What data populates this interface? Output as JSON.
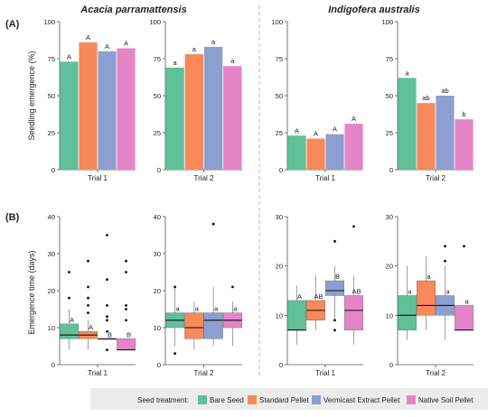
{
  "colors": {
    "bare_seed": "#5fc09a",
    "standard_pellet": "#f7895a",
    "vermicast_pellet": "#8c9fd0",
    "native_soil_pellet": "#e585c8",
    "axis": "#555555",
    "grid_bg": "#ffffff",
    "legend_bg": "#ececec"
  },
  "figure": {
    "species": [
      "Acacia parramattensis",
      "Indigofera australis"
    ],
    "panel_a_label": "(A)",
    "panel_b_label": "(B)",
    "panel_a_ylabel": "Seedling emergence (%)",
    "panel_b_ylabel": "Emergence time (days)",
    "legend_title": "Seed treatment:",
    "legend_items": [
      "Bare Seed",
      "Standard Pellet",
      "Vermicast Extract Pellet",
      "Native Soil Pellet"
    ]
  },
  "chart_data": [
    {
      "type": "bar",
      "panel": "A",
      "species": "Acacia parramattensis",
      "xlabel": "Trial 1",
      "ylim": [
        0,
        100
      ],
      "yticks": [
        0,
        25,
        50,
        75,
        100
      ],
      "categories": [
        "Bare Seed",
        "Standard Pellet",
        "Vermicast Extract Pellet",
        "Native Soil Pellet"
      ],
      "values": [
        73,
        86,
        80,
        82
      ],
      "letters": [
        "A",
        "A",
        "A",
        "A"
      ]
    },
    {
      "type": "bar",
      "panel": "A",
      "species": "Acacia parramattensis",
      "xlabel": "Trial 2",
      "ylim": [
        0,
        100
      ],
      "yticks": [
        0,
        25,
        50,
        75,
        100
      ],
      "categories": [
        "Bare Seed",
        "Standard Pellet",
        "Vermicast Extract Pellet",
        "Native Soil Pellet"
      ],
      "values": [
        69,
        78,
        83,
        70
      ],
      "letters": [
        "a",
        "a",
        "a",
        "a"
      ]
    },
    {
      "type": "bar",
      "panel": "A",
      "species": "Indigofera australis",
      "xlabel": "Trial 1",
      "ylim": [
        0,
        100
      ],
      "yticks": [
        0,
        25,
        50,
        75,
        100
      ],
      "categories": [
        "Bare Seed",
        "Standard Pellet",
        "Vermicast Extract Pellet",
        "Native Soil Pellet"
      ],
      "values": [
        23,
        21,
        24,
        31
      ],
      "letters": [
        "A",
        "A",
        "A",
        "A"
      ]
    },
    {
      "type": "bar",
      "panel": "A",
      "species": "Indigofera australis",
      "xlabel": "Trial 2",
      "ylim": [
        0,
        100
      ],
      "yticks": [
        0,
        25,
        50,
        75,
        100
      ],
      "categories": [
        "Bare Seed",
        "Standard Pellet",
        "Vermicast Extract Pellet",
        "Native Soil Pellet"
      ],
      "values": [
        62,
        45,
        50,
        34
      ],
      "letters": [
        "a",
        "ab",
        "ab",
        "b"
      ]
    },
    {
      "type": "box",
      "panel": "B",
      "species": "Acacia parramattensis",
      "xlabel": "Trial 1",
      "ylim": [
        0,
        40
      ],
      "yticks": [
        0,
        10,
        20,
        30,
        40
      ],
      "categories": [
        "Bare Seed",
        "Standard Pellet",
        "Vermicast Extract Pellet",
        "Native Soil Pellet"
      ],
      "boxes": [
        {
          "whislo": 4,
          "q1": 7,
          "med": 8,
          "q3": 11,
          "whishi": 15,
          "fliers": [
            18,
            25
          ]
        },
        {
          "whislo": 4,
          "q1": 7,
          "med": 8,
          "q3": 9,
          "whishi": 12,
          "fliers": [
            14,
            16,
            18,
            21,
            28
          ]
        },
        {
          "whislo": 7,
          "q1": 7,
          "med": 7,
          "q3": 7,
          "whishi": 7,
          "fliers": [
            4,
            9,
            12,
            13,
            16,
            23,
            35
          ]
        },
        {
          "whislo": 4,
          "q1": 4,
          "med": 4,
          "q3": 7,
          "whishi": 7,
          "fliers": [
            12,
            15,
            16,
            25,
            28
          ]
        }
      ],
      "letters": [
        "A",
        "A",
        "B",
        "B"
      ]
    },
    {
      "type": "box",
      "panel": "B",
      "species": "Acacia parramattensis",
      "xlabel": "Trial 2",
      "ylim": [
        0,
        40
      ],
      "yticks": [
        0,
        10,
        20,
        30,
        40
      ],
      "categories": [
        "Bare Seed",
        "Standard Pellet",
        "Vermicast Extract Pellet",
        "Native Soil Pellet"
      ],
      "boxes": [
        {
          "whislo": 5,
          "q1": 10,
          "med": 12,
          "q3": 14,
          "whishi": 21,
          "fliers": [
            3,
            21
          ]
        },
        {
          "whislo": 4,
          "q1": 7,
          "med": 10,
          "q3": 14,
          "whishi": 17,
          "fliers": []
        },
        {
          "whislo": 5,
          "q1": 7,
          "med": 12,
          "q3": 14,
          "whishi": 21,
          "fliers": [
            38
          ]
        },
        {
          "whislo": 5,
          "q1": 10,
          "med": 12,
          "q3": 14,
          "whishi": 17,
          "fliers": [
            21
          ]
        }
      ],
      "letters": [
        "a",
        "a",
        "a",
        "a"
      ]
    },
    {
      "type": "box",
      "panel": "B",
      "species": "Indigofera australis",
      "xlabel": "Trial 1",
      "ylim": [
        0,
        30
      ],
      "yticks": [
        0,
        10,
        20,
        30
      ],
      "categories": [
        "Bare Seed",
        "Standard Pellet",
        "Vermicast Extract Pellet",
        "Native Soil Pellet"
      ],
      "boxes": [
        {
          "whislo": 4,
          "q1": 7,
          "med": 7,
          "q3": 13,
          "whishi": 16,
          "fliers": []
        },
        {
          "whislo": 7,
          "q1": 9,
          "med": 11,
          "q3": 13,
          "whishi": 18,
          "fliers": []
        },
        {
          "whislo": 9,
          "q1": 14,
          "med": 15,
          "q3": 17,
          "whishi": 20,
          "fliers": [
            7,
            9,
            25
          ]
        },
        {
          "whislo": 4,
          "q1": 7,
          "med": 11,
          "q3": 14,
          "whishi": 18,
          "fliers": [
            28
          ]
        }
      ],
      "letters": [
        "A",
        "AB",
        "B",
        "AB"
      ]
    },
    {
      "type": "box",
      "panel": "B",
      "species": "Indigofera australis",
      "xlabel": "Trial 2",
      "ylim": [
        0,
        30
      ],
      "yticks": [
        0,
        10,
        20,
        30
      ],
      "categories": [
        "Bare Seed",
        "Standard Pellet",
        "Vermicast Extract Pellet",
        "Native Soil Pellet"
      ],
      "boxes": [
        {
          "whislo": 5,
          "q1": 7,
          "med": 10,
          "q3": 14,
          "whishi": 20,
          "fliers": []
        },
        {
          "whislo": 7,
          "q1": 10,
          "med": 12,
          "q3": 17,
          "whishi": 22,
          "fliers": []
        },
        {
          "whislo": 5,
          "q1": 10,
          "med": 12,
          "q3": 14,
          "whishi": 20,
          "fliers": [
            21,
            24
          ]
        },
        {
          "whislo": 7,
          "q1": 7,
          "med": 7,
          "q3": 12,
          "whishi": 12,
          "fliers": [
            24
          ]
        }
      ],
      "letters": [
        "a",
        "a",
        "a",
        "a"
      ]
    }
  ]
}
